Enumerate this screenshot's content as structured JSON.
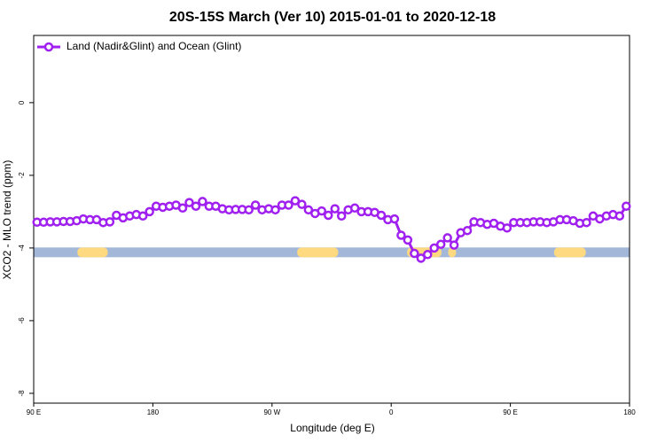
{
  "chart_data": {
    "type": "line",
    "title": "20S-15S March (Ver 10)   2015-01-01 to 2020-12-18",
    "xlabel": "Longitude (deg E)",
    "ylabel": "XCO2 - MLO trend (ppm)",
    "xlim": [
      90,
      540
    ],
    "ylim": [
      -8.27,
      1.85
    ],
    "xticks": [
      {
        "value": 90,
        "label": "90 E"
      },
      180,
      {
        "value": 270,
        "label": "90 W"
      },
      {
        "value": 360,
        "label": "0"
      },
      {
        "value": 450,
        "label": "90 E"
      },
      {
        "value": 540,
        "label": "180"
      }
    ],
    "yticks": [
      0,
      -2,
      -4,
      -6,
      -8
    ],
    "legend": "top-left",
    "surface_y": -4.12,
    "ocean_color": "#a3b7d9",
    "land_color": "#ffd97f",
    "land_spans": [
      [
        123,
        146
      ],
      [
        289,
        320
      ],
      [
        372,
        398
      ],
      [
        403,
        409
      ],
      [
        483,
        507
      ]
    ],
    "x": [
      92.5,
      97.5,
      102.5,
      107.5,
      112.5,
      117.5,
      122.5,
      127.5,
      132.5,
      137.5,
      142.5,
      147.5,
      152.5,
      157.5,
      162.5,
      167.5,
      172.5,
      177.5,
      182.5,
      187.5,
      192.5,
      197.5,
      202.5,
      207.5,
      212.5,
      217.5,
      222.5,
      227.5,
      232.5,
      237.5,
      242.5,
      247.5,
      252.5,
      257.5,
      262.5,
      267.5,
      272.5,
      277.5,
      282.5,
      287.5,
      292.5,
      297.5,
      302.5,
      307.5,
      312.5,
      317.5,
      322.5,
      327.5,
      332.5,
      337.5,
      342.5,
      347.5,
      352.5,
      357.5,
      362.5,
      367.5,
      372.5,
      377.5,
      382.5,
      387.5,
      392.5,
      397.5,
      402.5,
      407.5,
      412.5,
      417.5,
      422.5,
      427.5,
      432.5,
      437.5,
      442.5,
      447.5,
      452.5,
      457.5,
      462.5,
      467.5,
      472.5,
      477.5,
      482.5,
      487.5,
      492.5,
      497.5,
      502.5,
      507.5,
      512.5,
      517.5,
      522.5,
      527.5,
      532.5,
      537.5
    ],
    "series": [
      {
        "name": "Land (Nadir&Glint) and Ocean (Glint)",
        "color": "#a020f0",
        "values": [
          -3.29,
          -3.29,
          -3.28,
          -3.28,
          -3.27,
          -3.27,
          -3.25,
          -3.2,
          -3.22,
          -3.22,
          -3.3,
          -3.28,
          -3.1,
          -3.17,
          -3.12,
          -3.08,
          -3.12,
          -3.0,
          -2.85,
          -2.88,
          -2.85,
          -2.82,
          -2.9,
          -2.75,
          -2.85,
          -2.72,
          -2.85,
          -2.85,
          -2.92,
          -2.95,
          -2.94,
          -2.94,
          -2.95,
          -2.82,
          -2.95,
          -2.92,
          -2.95,
          -2.82,
          -2.82,
          -2.7,
          -2.8,
          -2.95,
          -3.05,
          -2.98,
          -3.1,
          -2.92,
          -3.12,
          -2.95,
          -2.9,
          -3.0,
          -3.0,
          -3.02,
          -3.1,
          -3.22,
          -3.2,
          -3.65,
          -3.78,
          -4.15,
          -4.28,
          -4.18,
          -4.0,
          -3.9,
          -3.72,
          -3.92,
          -3.58,
          -3.52,
          -3.28,
          -3.3,
          -3.35,
          -3.32,
          -3.4,
          -3.45,
          -3.3,
          -3.3,
          -3.3,
          -3.28,
          -3.28,
          -3.3,
          -3.28,
          -3.22,
          -3.22,
          -3.25,
          -3.32,
          -3.3,
          -3.12,
          -3.2,
          -3.12,
          -3.08,
          -3.12,
          -2.85
        ]
      }
    ]
  }
}
